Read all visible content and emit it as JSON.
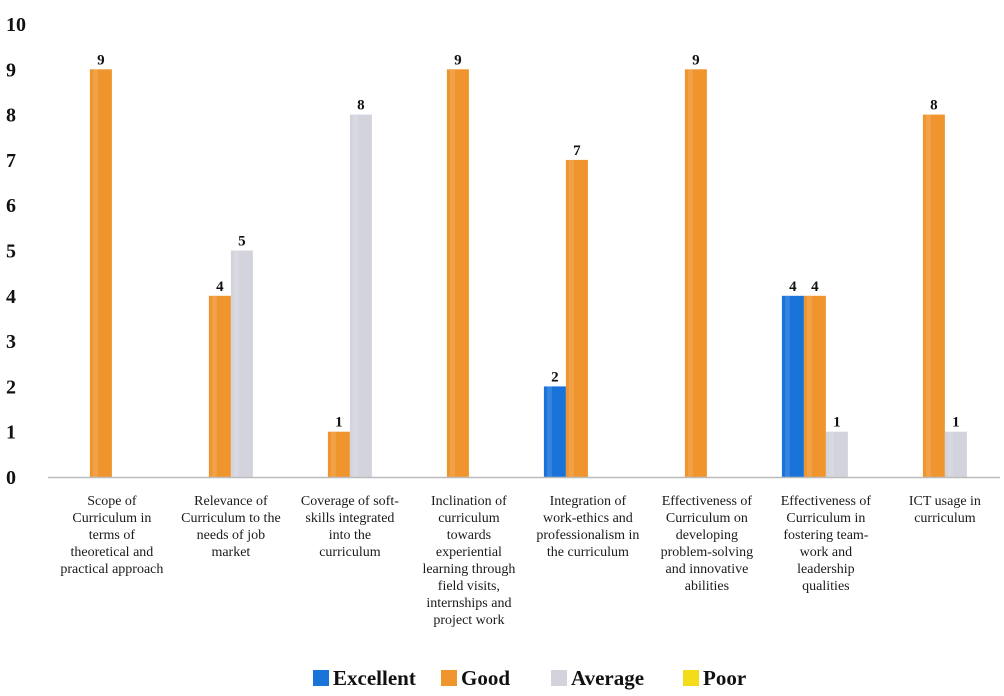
{
  "chart_data": {
    "type": "bar",
    "title": "",
    "xlabel": "",
    "ylabel": "",
    "ylim": [
      0,
      10
    ],
    "yticks": [
      "0",
      "1",
      "2",
      "3",
      "4",
      "5",
      "6",
      "7",
      "8",
      "9",
      "10"
    ],
    "grid": false,
    "legend_position": "bottom",
    "categories": [
      [
        "Scope of",
        "Curriculum in",
        "terms of",
        "theoretical and",
        "practical approach"
      ],
      [
        "Relevance of",
        "Curriculum to the",
        "needs of job",
        "market"
      ],
      [
        "Coverage of soft-",
        "skills integrated",
        "into the",
        "curriculum"
      ],
      [
        "Inclination of",
        "curriculum",
        "towards",
        "experiential",
        "learning through",
        "field visits,",
        "internships and",
        "project work"
      ],
      [
        "Integration of",
        "work-ethics and",
        "professionalism in",
        "the curriculum"
      ],
      [
        "Effectiveness of",
        "Curriculum on",
        "developing",
        "problem-solving",
        "and innovative",
        "abilities"
      ],
      [
        "Effectiveness of",
        "Curriculum in",
        "fostering team-",
        "work and",
        "leadership",
        "qualities"
      ],
      [
        "ICT usage  in",
        "curriculum"
      ]
    ],
    "series": [
      {
        "name": "Excellent",
        "color": "#1a73d9",
        "values": [
          0,
          0,
          0,
          0,
          2,
          0,
          4,
          0
        ]
      },
      {
        "name": "Good",
        "color": "#f0952e",
        "values": [
          9,
          4,
          1,
          9,
          7,
          9,
          4,
          8
        ]
      },
      {
        "name": "Average",
        "color": "#d3d3dd",
        "values": [
          0,
          5,
          8,
          0,
          0,
          0,
          1,
          1
        ]
      },
      {
        "name": "Poor",
        "color": "#f5dc1a",
        "values": [
          0,
          0,
          0,
          0,
          0,
          0,
          0,
          0
        ]
      }
    ]
  }
}
